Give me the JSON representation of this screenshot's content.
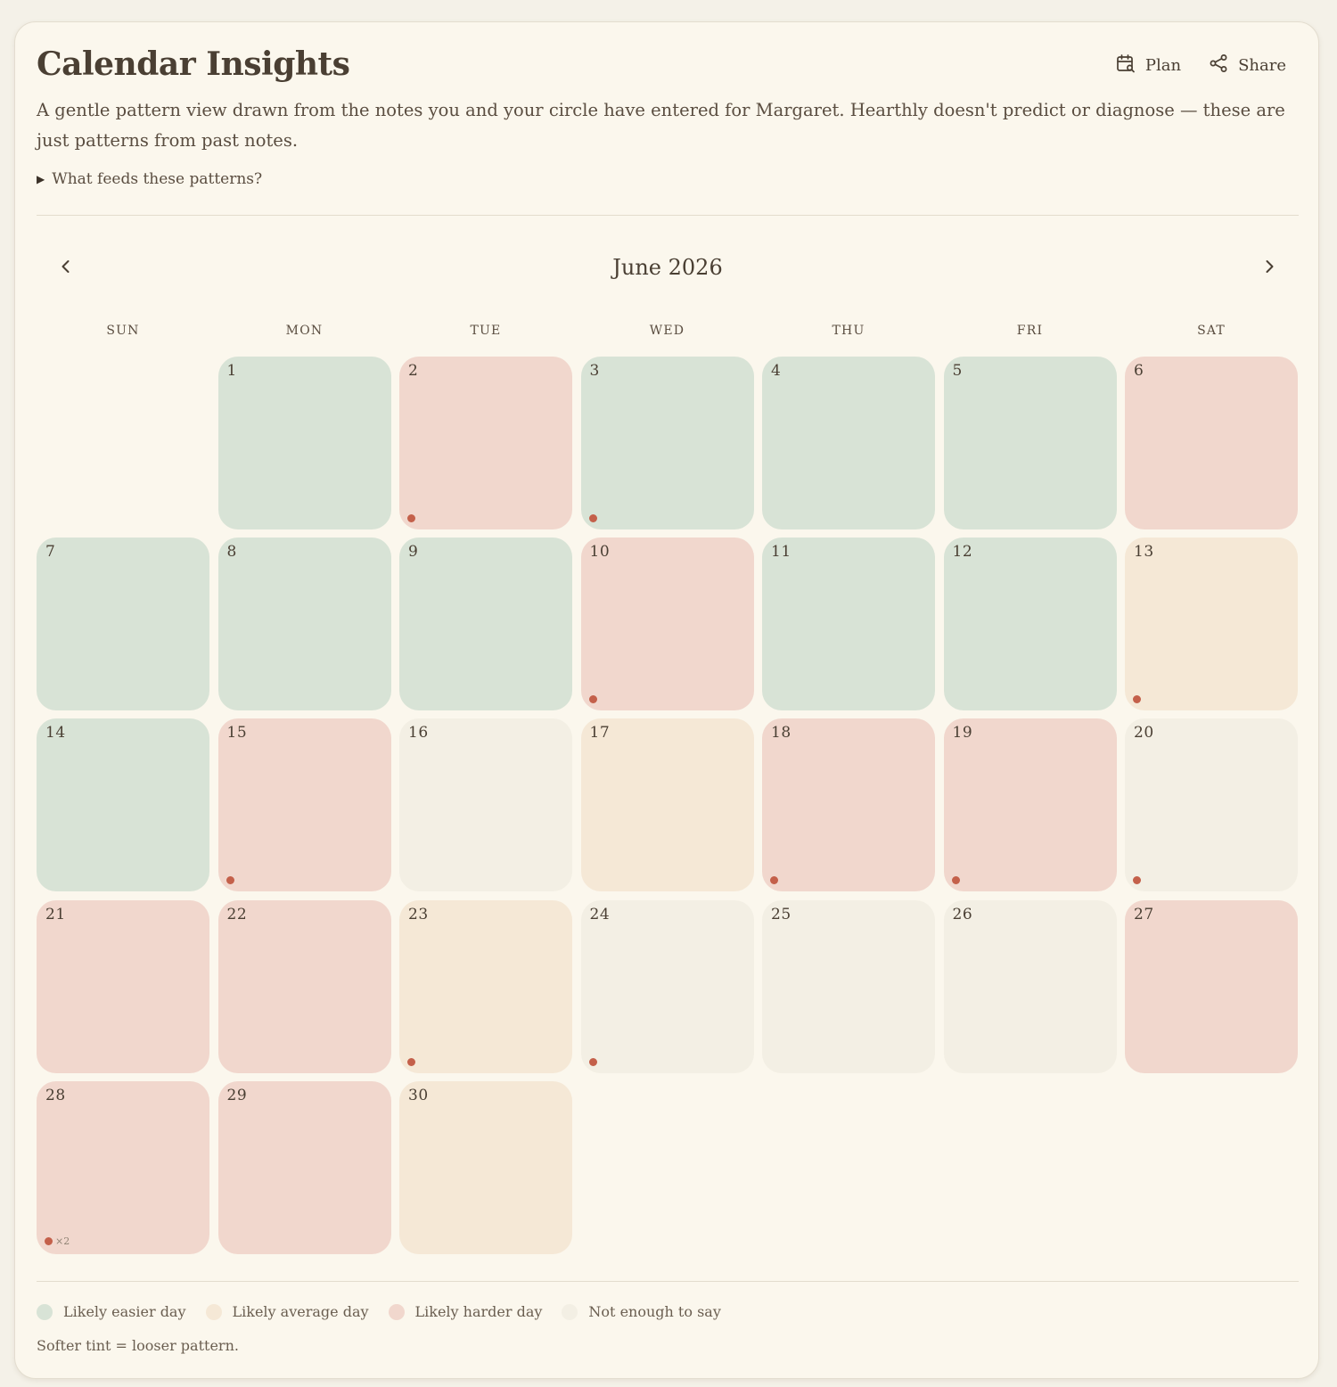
{
  "header": {
    "title": "Calendar Insights",
    "actions": {
      "plan_label": "Plan",
      "plan_icon": "calendar-search-icon",
      "share_label": "Share",
      "share_icon": "share-icon"
    }
  },
  "intro": {
    "text": "A gentle pattern view drawn from the notes you and your circle have entered for Margaret. Hearthly doesn't predict or diagnose — these are just patterns from past notes.",
    "disclosure_label": "What feeds these patterns?",
    "disclosure_icon": "triangle-right-icon"
  },
  "calendar": {
    "month_label": "June 2026",
    "prev_icon": "chevron-left-icon",
    "next_icon": "chevron-right-icon",
    "first_weekday_index": 1,
    "weekdays": [
      "SUN",
      "MON",
      "TUE",
      "WED",
      "THU",
      "FRI",
      "SAT"
    ],
    "days": [
      {
        "num": "1",
        "state": "easier",
        "notes": 0
      },
      {
        "num": "2",
        "state": "harder",
        "notes": 1
      },
      {
        "num": "3",
        "state": "easier",
        "notes": 1
      },
      {
        "num": "4",
        "state": "easier",
        "notes": 0
      },
      {
        "num": "5",
        "state": "easier",
        "notes": 0
      },
      {
        "num": "6",
        "state": "harder",
        "notes": 0
      },
      {
        "num": "7",
        "state": "easier",
        "notes": 0
      },
      {
        "num": "8",
        "state": "easier",
        "notes": 0
      },
      {
        "num": "9",
        "state": "easier",
        "notes": 0
      },
      {
        "num": "10",
        "state": "harder",
        "notes": 1
      },
      {
        "num": "11",
        "state": "easier",
        "notes": 0
      },
      {
        "num": "12",
        "state": "easier",
        "notes": 0
      },
      {
        "num": "13",
        "state": "average",
        "notes": 1
      },
      {
        "num": "14",
        "state": "easier",
        "notes": 0
      },
      {
        "num": "15",
        "state": "harder",
        "notes": 1
      },
      {
        "num": "16",
        "state": "unknown",
        "notes": 0
      },
      {
        "num": "17",
        "state": "average",
        "notes": 0
      },
      {
        "num": "18",
        "state": "harder",
        "notes": 1
      },
      {
        "num": "19",
        "state": "harder",
        "notes": 1
      },
      {
        "num": "20",
        "state": "unknown",
        "notes": 1
      },
      {
        "num": "21",
        "state": "harder",
        "notes": 0
      },
      {
        "num": "22",
        "state": "harder",
        "notes": 0
      },
      {
        "num": "23",
        "state": "average",
        "notes": 1
      },
      {
        "num": "24",
        "state": "unknown",
        "notes": 1
      },
      {
        "num": "25",
        "state": "unknown",
        "notes": 0
      },
      {
        "num": "26",
        "state": "unknown",
        "notes": 0
      },
      {
        "num": "27",
        "state": "harder",
        "notes": 0
      },
      {
        "num": "28",
        "state": "harder",
        "notes": 2,
        "note_count_label": "×2"
      },
      {
        "num": "29",
        "state": "harder",
        "notes": 0
      },
      {
        "num": "30",
        "state": "average",
        "notes": 0
      }
    ]
  },
  "legend": {
    "items": [
      {
        "label": "Likely easier day",
        "state": "easier"
      },
      {
        "label": "Likely average day",
        "state": "average"
      },
      {
        "label": "Likely harder day",
        "state": "harder"
      },
      {
        "label": "Not enough to say",
        "state": "unknown"
      }
    ],
    "footnote": "Softer tint = looser pattern."
  },
  "colors": {
    "easier": "#d8e3d6",
    "average": "#f5e8d6",
    "harder": "#f1d7cd",
    "unknown": "#f3efe4",
    "note_marker": "#c4604a",
    "page_background": "#f4f1e8",
    "card_background": "#fbf7ed"
  }
}
